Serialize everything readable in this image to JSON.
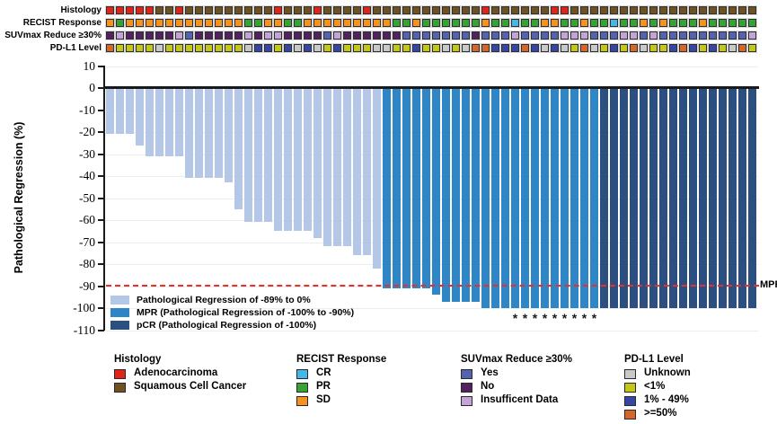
{
  "tracks": {
    "rows": [
      {
        "label": "Histology",
        "key": "histology",
        "values": [
          "A",
          "A",
          "A",
          "A",
          "A",
          "S",
          "S",
          "A",
          "S",
          "S",
          "S",
          "S",
          "S",
          "S",
          "S",
          "S",
          "S",
          "A",
          "S",
          "S",
          "S",
          "A",
          "S",
          "S",
          "S",
          "S",
          "A",
          "S",
          "S",
          "S",
          "S",
          "S",
          "S",
          "S",
          "S",
          "S",
          "S",
          "S",
          "A",
          "S",
          "S",
          "S",
          "S",
          "S",
          "S",
          "A",
          "A",
          "S",
          "S",
          "S",
          "S",
          "S",
          "S",
          "S",
          "S",
          "S",
          "S",
          "S",
          "S",
          "S",
          "S",
          "S",
          "S",
          "S",
          "S",
          "S"
        ],
        "color_map": {
          "A": "#e02418",
          "S": "#6f5222"
        }
      },
      {
        "label": "RECIST Response",
        "key": "recist",
        "values": [
          "SD",
          "PR",
          "SD",
          "SD",
          "SD",
          "SD",
          "SD",
          "SD",
          "SD",
          "SD",
          "SD",
          "SD",
          "SD",
          "SD",
          "PR",
          "PR",
          "SD",
          "SD",
          "PR",
          "PR",
          "SD",
          "SD",
          "SD",
          "SD",
          "SD",
          "SD",
          "SD",
          "SD",
          "SD",
          "PR",
          "PR",
          "SD",
          "PR",
          "PR",
          "PR",
          "PR",
          "PR",
          "PR",
          "SD",
          "PR",
          "PR",
          "CR",
          "PR",
          "PR",
          "SD",
          "SD",
          "PR",
          "PR",
          "SD",
          "PR",
          "PR",
          "CR",
          "PR",
          "PR",
          "SD",
          "PR",
          "SD",
          "PR",
          "PR",
          "PR",
          "SD",
          "PR",
          "PR",
          "PR",
          "PR",
          "PR"
        ],
        "color_map": {
          "CR": "#45b8e8",
          "PR": "#35a433",
          "SD": "#f6921e"
        }
      },
      {
        "label": "SUVmax Reduce ≥30%",
        "key": "suvmax",
        "values": [
          "N",
          "I",
          "N",
          "N",
          "N",
          "N",
          "N",
          "I",
          "Y",
          "N",
          "N",
          "N",
          "N",
          "N",
          "I",
          "N",
          "I",
          "I",
          "N",
          "N",
          "N",
          "N",
          "Y",
          "I",
          "N",
          "N",
          "N",
          "N",
          "N",
          "N",
          "Y",
          "Y",
          "Y",
          "Y",
          "Y",
          "Y",
          "Y",
          "N",
          "Y",
          "Y",
          "Y",
          "I",
          "Y",
          "Y",
          "Y",
          "Y",
          "I",
          "I",
          "I",
          "Y",
          "Y",
          "Y",
          "I",
          "I",
          "Y",
          "I",
          "Y",
          "Y",
          "Y",
          "Y",
          "Y",
          "Y",
          "Y",
          "Y",
          "Y",
          "I"
        ],
        "color_map": {
          "Y": "#5462b2",
          "N": "#53215f",
          "I": "#c4a4d6"
        }
      },
      {
        "label": "PD-L1 Level",
        "key": "pdl1",
        "values": [
          "H",
          "L",
          "L",
          "L",
          "L",
          "U",
          "L",
          "L",
          "L",
          "L",
          "L",
          "L",
          "L",
          "L",
          "U",
          "M",
          "M",
          "L",
          "M",
          "U",
          "M",
          "U",
          "L",
          "M",
          "L",
          "L",
          "L",
          "U",
          "U",
          "L",
          "L",
          "M",
          "L",
          "L",
          "U",
          "L",
          "U",
          "H",
          "H",
          "M",
          "M",
          "M",
          "H",
          "M",
          "U",
          "M",
          "U",
          "L",
          "H",
          "U",
          "L",
          "M",
          "L",
          "H",
          "U",
          "L",
          "L",
          "M",
          "H",
          "M",
          "L",
          "M",
          "L",
          "U",
          "H",
          "L"
        ],
        "color_map": {
          "U": "#c9c9c9",
          "L": "#c3c717",
          "M": "#3646a5",
          "H": "#d4682a"
        }
      }
    ]
  },
  "chart_data": {
    "type": "bar",
    "title": "",
    "xlabel": "",
    "ylabel": "Pathological Regression (%)",
    "ylim": [
      -110,
      10
    ],
    "yticks": [
      10,
      0,
      -10,
      -20,
      -30,
      -40,
      -50,
      -60,
      -70,
      -80,
      -90,
      -100,
      -110
    ],
    "grid": "horizontal",
    "n_patients": 66,
    "values": [
      -21,
      -21,
      -21,
      -26,
      -31,
      -31,
      -31,
      -31,
      -41,
      -41,
      -41,
      -41,
      -43,
      -55,
      -61,
      -61,
      -61,
      -65,
      -65,
      -65,
      -65,
      -68,
      -72,
      -72,
      -72,
      -76,
      -76,
      -82,
      -91,
      -91,
      -91,
      -91,
      -91,
      -94,
      -97,
      -97,
      -97,
      -97,
      -100,
      -100,
      -100,
      -100,
      -100,
      -100,
      -100,
      -100,
      -100,
      -100,
      -100,
      -100,
      -100,
      -100,
      -100,
      -100,
      -100,
      -100,
      -100,
      -100,
      -100,
      -100,
      -100,
      -100,
      -100,
      -100,
      -100,
      -100
    ],
    "groups": [
      "minor",
      "minor",
      "minor",
      "minor",
      "minor",
      "minor",
      "minor",
      "minor",
      "minor",
      "minor",
      "minor",
      "minor",
      "minor",
      "minor",
      "minor",
      "minor",
      "minor",
      "minor",
      "minor",
      "minor",
      "minor",
      "minor",
      "minor",
      "minor",
      "minor",
      "minor",
      "minor",
      "minor",
      "mpr",
      "mpr",
      "mpr",
      "mpr",
      "mpr",
      "mpr",
      "mpr",
      "mpr",
      "mpr",
      "mpr",
      "mpr",
      "mpr",
      "mpr",
      "mpr",
      "mpr",
      "mpr",
      "mpr",
      "mpr",
      "mpr",
      "mpr",
      "mpr",
      "mpr",
      "pcr",
      "pcr",
      "pcr",
      "pcr",
      "pcr",
      "pcr",
      "pcr",
      "pcr",
      "pcr",
      "pcr",
      "pcr",
      "pcr",
      "pcr",
      "pcr",
      "pcr",
      "pcr"
    ],
    "group_colors": {
      "minor": "#b4c7e7",
      "mpr": "#2e86c6",
      "pcr": "#2b4f81"
    },
    "asterisk_columns": [
      42,
      43,
      44,
      45,
      46,
      47,
      48,
      49,
      50
    ],
    "asterisk_glyph": "*",
    "mpr_line": {
      "y": -90,
      "label": "MPR",
      "color": "#e8302a"
    },
    "inplot_legend": [
      {
        "label": "Pathological Regression of -89% to 0%",
        "color": "#b4c7e7"
      },
      {
        "label": "MPR (Pathological Regression of -100% to -90%)",
        "color": "#2e86c6"
      },
      {
        "label": "pCR (Pathological Regression of -100%)",
        "color": "#2b4f81"
      }
    ]
  },
  "bottom_legend": [
    {
      "title": "Histology",
      "items": [
        {
          "label": "Adenocarcinoma",
          "color": "#e02418"
        },
        {
          "label": "Squamous Cell Cancer",
          "color": "#6f5222"
        }
      ]
    },
    {
      "title": "RECIST Response",
      "items": [
        {
          "label": "CR",
          "color": "#45b8e8"
        },
        {
          "label": "PR",
          "color": "#35a433"
        },
        {
          "label": "SD",
          "color": "#f6921e"
        }
      ]
    },
    {
      "title": "SUVmax Reduce ≥30%",
      "items": [
        {
          "label": "Yes",
          "color": "#5462b2"
        },
        {
          "label": "No",
          "color": "#53215f"
        },
        {
          "label": "Insufficent Data",
          "color": "#c4a4d6"
        }
      ]
    },
    {
      "title": "PD-L1 Level",
      "items": [
        {
          "label": "Unknown",
          "color": "#c9c9c9"
        },
        {
          "label": "<1%",
          "color": "#c3c717"
        },
        {
          "label": "1% - 49%",
          "color": "#3646a5"
        },
        {
          "label": ">=50%",
          "color": "#d4682a"
        }
      ]
    }
  ]
}
